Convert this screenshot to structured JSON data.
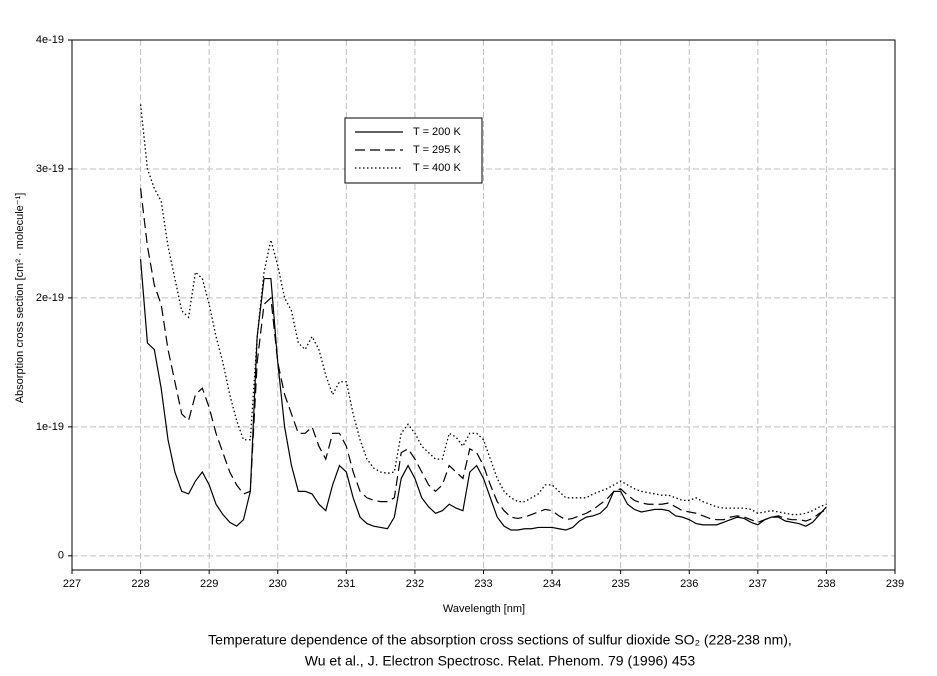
{
  "chart_data": {
    "type": "line",
    "ylabel": "Absorption cross section [cm² · molecule⁻¹]",
    "xlabel": "Wavelength [nm]",
    "caption": [
      "Temperature dependence of the absorption cross sections of sulfur dioxide SO₂ (228-238 nm),",
      "Wu et al., J. Electron Spectrosc. Relat. Phenom. 79 (1996) 453"
    ],
    "xlim": [
      227,
      239
    ],
    "xticks": [
      227,
      228,
      229,
      230,
      231,
      232,
      233,
      234,
      235,
      236,
      237,
      238,
      239
    ],
    "ylim": [
      -1.1e-20,
      4e-19
    ],
    "yticks": [
      0,
      1e-19,
      2e-19,
      3e-19,
      4e-19
    ],
    "grid": true,
    "legend_position": "top-center",
    "x": [
      228.0,
      228.1,
      228.2,
      228.3,
      228.4,
      228.5,
      228.6,
      228.7,
      228.8,
      228.9,
      229.0,
      229.1,
      229.2,
      229.3,
      229.4,
      229.5,
      229.6,
      229.7,
      229.8,
      229.9,
      230.0,
      230.1,
      230.2,
      230.3,
      230.4,
      230.5,
      230.6,
      230.7,
      230.8,
      230.9,
      231.0,
      231.1,
      231.2,
      231.3,
      231.4,
      231.5,
      231.6,
      231.7,
      231.8,
      231.9,
      232.0,
      232.1,
      232.2,
      232.3,
      232.4,
      232.5,
      232.6,
      232.7,
      232.8,
      232.9,
      233.0,
      233.1,
      233.2,
      233.3,
      233.4,
      233.5,
      233.6,
      233.7,
      233.8,
      233.9,
      234.0,
      234.1,
      234.2,
      234.3,
      234.4,
      234.5,
      234.6,
      234.7,
      234.8,
      234.9,
      235.0,
      235.1,
      235.2,
      235.3,
      235.4,
      235.5,
      235.6,
      235.7,
      235.8,
      235.9,
      236.0,
      236.1,
      236.2,
      236.3,
      236.4,
      236.5,
      236.6,
      236.7,
      236.8,
      236.9,
      237.0,
      237.1,
      237.2,
      237.3,
      237.4,
      237.5,
      237.6,
      237.7,
      237.8,
      237.9,
      238.0
    ],
    "series": [
      {
        "name": "T = 200 K",
        "color": "#000000",
        "dash": "solid",
        "values": [
          2.3e-19,
          1.65e-19,
          1.6e-19,
          1.3e-19,
          9e-20,
          6.5e-20,
          5e-20,
          4.8e-20,
          5.8e-20,
          6.5e-20,
          5.5e-20,
          4e-20,
          3.2e-20,
          2.6e-20,
          2.3e-20,
          2.8e-20,
          5e-20,
          1.7e-19,
          2.15e-19,
          2.15e-19,
          1.5e-19,
          1e-19,
          7e-20,
          5e-20,
          5e-20,
          4.8e-20,
          4e-20,
          3.5e-20,
          5.5e-20,
          7e-20,
          6.5e-20,
          4.5e-20,
          3e-20,
          2.5e-20,
          2.3e-20,
          2.2e-20,
          2.1e-20,
          3e-20,
          6e-20,
          7e-20,
          6e-20,
          4.5e-20,
          3.8e-20,
          3.3e-20,
          3.5e-20,
          4e-20,
          3.7e-20,
          3.5e-20,
          6.5e-20,
          7e-20,
          6e-20,
          4.5e-20,
          3e-20,
          2.3e-20,
          2e-20,
          2e-20,
          2.1e-20,
          2.1e-20,
          2.2e-20,
          2.2e-20,
          2.2e-20,
          2.1e-20,
          2e-20,
          2.2e-20,
          2.7e-20,
          3e-20,
          3.1e-20,
          3.3e-20,
          3.8e-20,
          5e-20,
          5e-20,
          4e-20,
          3.6e-20,
          3.4e-20,
          3.5e-20,
          3.6e-20,
          3.6e-20,
          3.5e-20,
          3.1e-20,
          3e-20,
          2.8e-20,
          2.5e-20,
          2.4e-20,
          2.4e-20,
          2.4e-20,
          2.6e-20,
          2.8e-20,
          3e-20,
          2.9e-20,
          2.6e-20,
          2.4e-20,
          2.8e-20,
          3e-20,
          3e-20,
          2.7e-20,
          2.6e-20,
          2.5e-20,
          2.3e-20,
          2.6e-20,
          3.2e-20,
          3.8e-20
        ]
      },
      {
        "name": "T = 295 K",
        "color": "#000000",
        "dash": "dashed",
        "values": [
          2.85e-19,
          2.4e-19,
          2.1e-19,
          1.95e-19,
          1.6e-19,
          1.35e-19,
          1.1e-19,
          1.05e-19,
          1.25e-19,
          1.3e-19,
          1.15e-19,
          9.5e-20,
          8e-20,
          6.5e-20,
          5.5e-20,
          4.8e-20,
          5e-20,
          1.5e-19,
          1.95e-19,
          2e-19,
          1.5e-19,
          1.25e-19,
          1.1e-19,
          9.5e-20,
          9.5e-20,
          1e-19,
          8.5e-20,
          7.5e-20,
          9.5e-20,
          9.5e-20,
          8.5e-20,
          6.5e-20,
          5e-20,
          4.5e-20,
          4.3e-20,
          4.2e-20,
          4.2e-20,
          4.5e-20,
          8e-20,
          8.3e-20,
          7.5e-20,
          6.5e-20,
          5.5e-20,
          5e-20,
          5.5e-20,
          7e-20,
          6.5e-20,
          6e-20,
          8.3e-20,
          8e-20,
          7e-20,
          5.5e-20,
          4.2e-20,
          3.5e-20,
          3e-20,
          2.9e-20,
          3e-20,
          3.2e-20,
          3.4e-20,
          3.6e-20,
          3.5e-20,
          3.1e-20,
          2.8e-20,
          2.9e-20,
          3.1e-20,
          3.3e-20,
          3.6e-20,
          4e-20,
          4.4e-20,
          5e-20,
          5.2e-20,
          4.7e-20,
          4.3e-20,
          4.1e-20,
          4e-20,
          4e-20,
          4e-20,
          4.1e-20,
          3.8e-20,
          3.5e-20,
          3.4e-20,
          3.3e-20,
          3.1e-20,
          2.9e-20,
          2.8e-20,
          2.8e-20,
          3e-20,
          3.1e-20,
          3e-20,
          2.8e-20,
          2.6e-20,
          2.8e-20,
          3e-20,
          3.1e-20,
          2.9e-20,
          2.8e-20,
          2.8e-20,
          2.7e-20,
          2.9e-20,
          3.3e-20,
          3.6e-20
        ]
      },
      {
        "name": "T = 400 K",
        "color": "#000000",
        "dash": "dotted",
        "values": [
          3.5e-19,
          3e-19,
          2.85e-19,
          2.75e-19,
          2.4e-19,
          2.15e-19,
          1.9e-19,
          1.85e-19,
          2.2e-19,
          2.15e-19,
          1.95e-19,
          1.7e-19,
          1.5e-19,
          1.25e-19,
          1.05e-19,
          9e-20,
          9e-20,
          1.7e-19,
          2.2e-19,
          2.45e-19,
          2.25e-19,
          2e-19,
          1.9e-19,
          1.65e-19,
          1.6e-19,
          1.7e-19,
          1.6e-19,
          1.4e-19,
          1.25e-19,
          1.35e-19,
          1.35e-19,
          1.1e-19,
          9e-20,
          7.5e-20,
          6.8e-20,
          6.5e-20,
          6.4e-20,
          6.5e-20,
          9.5e-20,
          1.02e-19,
          9.5e-20,
          8.5e-20,
          8e-20,
          7.5e-20,
          7.5e-20,
          9.5e-20,
          9.2e-20,
          8.5e-20,
          9.5e-20,
          9.5e-20,
          9e-20,
          7.5e-20,
          6e-20,
          5e-20,
          4.5e-20,
          4.2e-20,
          4.2e-20,
          4.5e-20,
          4.8e-20,
          5.5e-20,
          5.5e-20,
          5e-20,
          4.5e-20,
          4.5e-20,
          4.5e-20,
          4.5e-20,
          4.8e-20,
          5e-20,
          5.2e-20,
          5.5e-20,
          5.8e-20,
          5.5e-20,
          5.2e-20,
          5e-20,
          4.9e-20,
          4.8e-20,
          4.7e-20,
          4.7e-20,
          4.5e-20,
          4.3e-20,
          4.3e-20,
          4.5e-20,
          4.2e-20,
          4e-20,
          3.8e-20,
          3.7e-20,
          3.7e-20,
          3.7e-20,
          3.7e-20,
          3.6e-20,
          3.3e-20,
          3.4e-20,
          3.5e-20,
          3.4e-20,
          3.3e-20,
          3.2e-20,
          3.2e-20,
          3.3e-20,
          3.5e-20,
          3.8e-20,
          4e-20
        ]
      }
    ]
  }
}
